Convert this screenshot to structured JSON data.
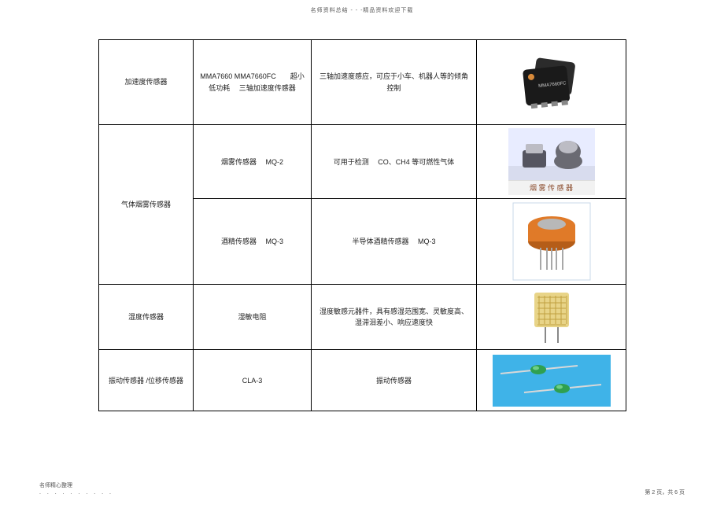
{
  "header": "名师资料总结 - - -精品资料欢迎下载",
  "footer": {
    "left_line1": "名师精心整理",
    "left_dots": ". . . . . . . . . .",
    "right": "第 2 页，共 6 页"
  },
  "rows": [
    {
      "category": "加速度传感器",
      "model": "MMA7660 MMA7660FC　　超小低功耗　 三轴加速度传感器",
      "desc": "三轴加速度感应，可应于小车、机器人等的倾角控制",
      "height_class": "h-lg",
      "icon": "chip"
    },
    {
      "category": "气体烟雾传感器",
      "category_rowspan": 2,
      "model": "烟雾传感器　 MQ-2",
      "desc": "可用于检测　 CO、CH4 等可燃性气体",
      "height_class": "h-mid",
      "icon": "smoke",
      "icon_caption": "烟 雾 传 感 器"
    },
    {
      "model": "酒精传感器　 MQ-3",
      "desc": "半导体酒精传感器　 MQ-3",
      "height_class": "h-lg",
      "icon": "mq3"
    },
    {
      "category": "湿度传感器",
      "model": "湿敏电阻",
      "desc": "湿度敏感元器件，具有感湿范围宽、灵敏度高、湿滞泪差小、响应速度快",
      "height_class": "h-sm",
      "icon": "humidity"
    },
    {
      "category": "振动传感器  /位移传感器",
      "model": "CLA-3",
      "desc": "振动传感器",
      "height_class": "h-sm",
      "icon": "vibration"
    }
  ],
  "icons": {
    "chip": {
      "bg": "#ffffff",
      "body": "#1a1a1a",
      "body2": "#2b2b2b",
      "logo": "#d88a3a",
      "text": "#cccccc"
    },
    "smoke": {
      "bg": "#e8ecff",
      "shadow_bg": "#d8dcee",
      "body1": "#555560",
      "body2": "#6a6a72",
      "top": "#bcbcc4",
      "cap_bg": "#f2f2f2",
      "cap_color": "#8a4a2a"
    },
    "mq3": {
      "bg": "#ffffff",
      "border": "#c8d8ea",
      "body": "#e07a28",
      "body_dark": "#b55d18",
      "mesh": "#b8b8b8",
      "pins": "#a8a8a8"
    },
    "humidity": {
      "bg": "#ffffff",
      "body": "#e8d488",
      "grid": "#c0a040",
      "pins": "#888888"
    },
    "vibration": {
      "bg": "#3fb3e8",
      "body": "#2fa050",
      "body_hl": "#6ed088",
      "lead": "#d8d8d8"
    }
  }
}
